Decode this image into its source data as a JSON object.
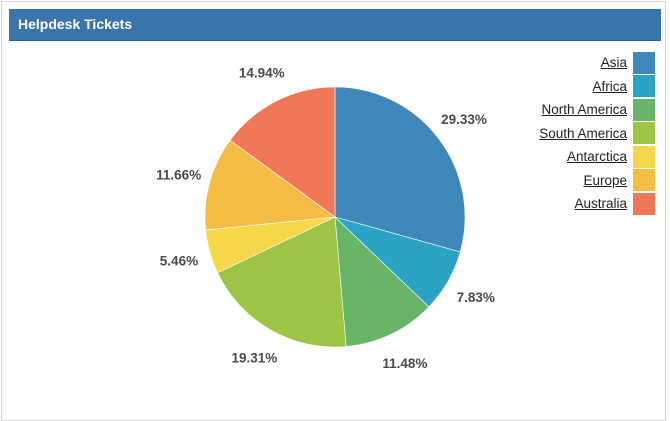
{
  "header": {
    "title": "Helpdesk Tickets"
  },
  "chart_data": {
    "type": "pie",
    "title": "Helpdesk Tickets",
    "categories": [
      "Asia",
      "Africa",
      "North America",
      "South America",
      "Antarctica",
      "Europe",
      "Australia"
    ],
    "values": [
      29.33,
      7.83,
      11.48,
      19.31,
      5.46,
      11.66,
      14.94
    ],
    "labels": [
      "29.33%",
      "7.83%",
      "11.48%",
      "19.31%",
      "5.46%",
      "11.66%",
      "14.94%"
    ],
    "colors": [
      "#3e88bb",
      "#2ba3c4",
      "#68b56a",
      "#9dc445",
      "#f7d74a",
      "#f6bd46",
      "#f07859"
    ],
    "legend_position": "right",
    "start_angle": "12 o'clock, clockwise"
  },
  "legend": {
    "items": [
      {
        "label": "Asia",
        "color": "#3e88bb"
      },
      {
        "label": "Africa",
        "color": "#2ba3c4"
      },
      {
        "label": "North America",
        "color": "#68b56a"
      },
      {
        "label": "South America",
        "color": "#9dc445"
      },
      {
        "label": "Antarctica",
        "color": "#f7d74a"
      },
      {
        "label": "Europe",
        "color": "#f6bd46"
      },
      {
        "label": "Australia",
        "color": "#f07859"
      }
    ]
  }
}
